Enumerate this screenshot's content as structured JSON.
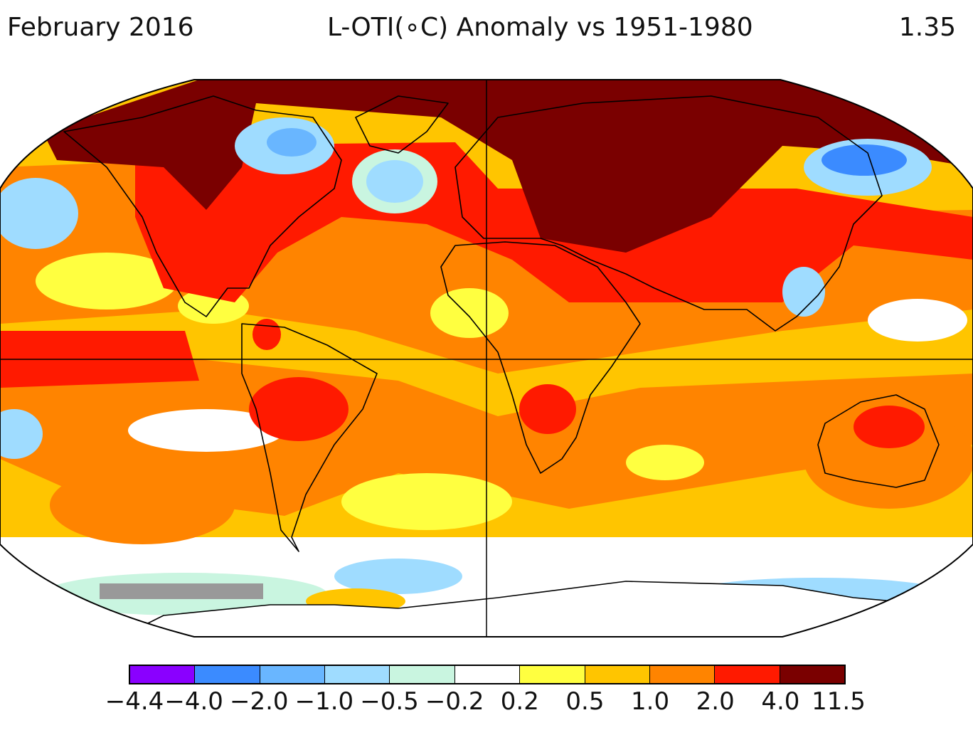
{
  "header": {
    "date": "February 2016",
    "title": "L-OTI(∘C) Anomaly vs 1951-1980",
    "global_mean": "1.35"
  },
  "legend": {
    "colors": [
      "#8a00ff",
      "#3b8bff",
      "#69b6ff",
      "#9fdcff",
      "#c9f5e0",
      "#ffffff",
      "#ffff40",
      "#ffc500",
      "#ff8400",
      "#ff1a00",
      "#7a0000"
    ],
    "ticks": [
      "−4.4",
      "−4.0",
      "−2.0",
      "−1.0",
      "−0.5",
      "−0.2",
      "0.2",
      "0.5",
      "1.0",
      "2.0",
      "4.0",
      "11.5"
    ]
  },
  "map": {
    "projection": "robinson",
    "missing_color": "#999999",
    "background_color": "#ffc500"
  }
}
